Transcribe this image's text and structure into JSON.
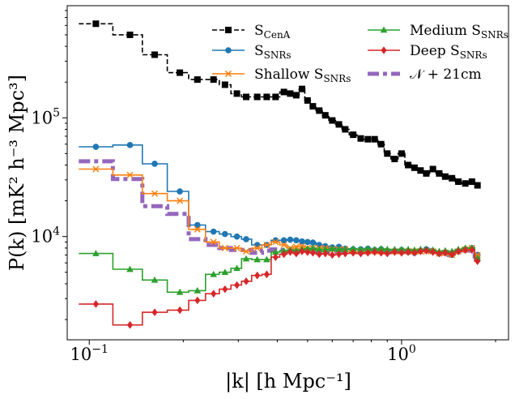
{
  "chart_data": {
    "type": "line",
    "xscale": "log",
    "yscale": "log",
    "xlim": [
      0.085,
      2.2
    ],
    "ylim": [
      1350,
      880000
    ],
    "xlabel": "|k| [h Mpc⁻¹]",
    "ylabel": "P(k) [mK² h⁻³ Mpc³]",
    "xticks": [
      {
        "value": 0.1,
        "base": "10",
        "exp": "−1"
      },
      {
        "value": 1.0,
        "base": "10",
        "exp": "0"
      }
    ],
    "yticks": [
      {
        "value": 10000,
        "base": "10",
        "exp": "4"
      },
      {
        "value": 100000,
        "base": "10",
        "exp": "5"
      }
    ],
    "x": [
      0.105,
      0.135,
      0.162,
      0.195,
      0.222,
      0.25,
      0.272,
      0.297,
      0.318,
      0.345,
      0.37,
      0.395,
      0.42,
      0.44,
      0.46,
      0.48,
      0.5,
      0.52,
      0.545,
      0.57,
      0.6,
      0.63,
      0.66,
      0.7,
      0.74,
      0.78,
      0.82,
      0.86,
      0.9,
      0.95,
      1.0,
      1.05,
      1.1,
      1.15,
      1.2,
      1.26,
      1.32,
      1.38,
      1.45,
      1.52,
      1.6,
      1.68,
      1.75
    ],
    "series": [
      {
        "name": "S_CenA",
        "label_main": "S",
        "label_sub": "CenA",
        "color": "#000000",
        "marker": "square",
        "linestyle": "dashed",
        "values": [
          620000,
          500000,
          340000,
          240000,
          210000,
          210000,
          190000,
          160000,
          150000,
          150000,
          150000,
          150000,
          165000,
          160000,
          155000,
          175000,
          140000,
          125000,
          115000,
          105000,
          95000,
          88000,
          80000,
          72000,
          67000,
          66000,
          66000,
          60000,
          50000,
          45000,
          50000,
          40000,
          38000,
          36000,
          34000,
          37000,
          34000,
          32000,
          31000,
          29000,
          28000,
          29000,
          27000
        ]
      },
      {
        "name": "S_SNRs",
        "label_main": "S",
        "label_sub": "SNRs",
        "color": "#1f77b4",
        "marker": "circle",
        "linestyle": "solid",
        "values": [
          57000,
          59000,
          41000,
          24000,
          12500,
          11000,
          10500,
          10000,
          9500,
          8500,
          8500,
          9300,
          9300,
          9400,
          9300,
          9100,
          9000,
          8900,
          8500,
          8300,
          8100,
          8200,
          7900,
          7800,
          7800,
          7900,
          7700,
          7800,
          7600,
          7500,
          7700,
          7400,
          7300,
          7600,
          7800,
          7500,
          7200,
          7300,
          7000,
          7500,
          7800,
          8000,
          7000
        ]
      },
      {
        "name": "Shallow S_SNRs",
        "label_main": "Shallow S",
        "label_sub": "SNRs",
        "color": "#ff7f0e",
        "marker": "x",
        "linestyle": "solid",
        "values": [
          37000,
          33000,
          23000,
          20000,
          11500,
          9000,
          8000,
          8000,
          7500,
          8000,
          8500,
          9000,
          8500,
          8000,
          8200,
          8300,
          8000,
          8000,
          8000,
          8000,
          7800,
          7800,
          7800,
          7500,
          7500,
          7500,
          7500,
          7500,
          7500,
          7500,
          7500,
          7500,
          7500,
          7500,
          7500,
          7500,
          7200,
          7300,
          7000,
          7500,
          7800,
          8000,
          7000
        ]
      },
      {
        "name": "Medium S_SNRs",
        "label_main": "Medium S",
        "label_sub": "SNRs",
        "color": "#2ca02c",
        "marker": "triangle",
        "linestyle": "solid",
        "values": [
          7200,
          5300,
          4300,
          3400,
          3500,
          4800,
          5000,
          5400,
          6500,
          6400,
          6400,
          7400,
          7600,
          7700,
          7600,
          7800,
          7900,
          8000,
          7800,
          7800,
          7900,
          7800,
          7800,
          7900,
          7800,
          7900,
          7800,
          7900,
          7800,
          7800,
          7800,
          7800,
          7700,
          7800,
          7800,
          7700,
          7500,
          7600,
          7500,
          7800,
          8000,
          8000,
          6600
        ]
      },
      {
        "name": "Deep S_SNRs",
        "label_main": "Deep S",
        "label_sub": "SNRs",
        "color": "#d62728",
        "marker": "diamond",
        "linestyle": "solid",
        "values": [
          2700,
          1800,
          2300,
          2400,
          2900,
          3300,
          3600,
          3900,
          4200,
          4700,
          4800,
          6700,
          7100,
          7400,
          7200,
          7500,
          7400,
          7300,
          7100,
          7200,
          7000,
          7100,
          7200,
          7300,
          7200,
          7300,
          7400,
          7300,
          7200,
          7400,
          7300,
          7400,
          7300,
          7500,
          7600,
          7400,
          7200,
          7300,
          7100,
          7500,
          7700,
          7700,
          6200
        ]
      },
      {
        "name": "N+21cm",
        "label_main": "𝒩 + 21cm",
        "label_sub": "",
        "color": "#9467bd",
        "marker": "none",
        "linestyle": "dashdot",
        "values": [
          43000,
          30500,
          18000,
          15500,
          9500,
          8500,
          8000,
          7700,
          7700,
          7300,
          7600,
          7800,
          7700,
          7600,
          7600,
          7600,
          7600,
          7600,
          7500,
          7500,
          7500,
          7500,
          7500,
          7500,
          7500,
          7500,
          7500,
          7500,
          7400,
          7400,
          7400,
          7500,
          7500,
          7600,
          7700,
          7500,
          7100,
          7200,
          7000,
          7400,
          7600,
          7600,
          6800
        ]
      }
    ],
    "legend": {
      "position": "top-right",
      "columns": 2
    }
  }
}
